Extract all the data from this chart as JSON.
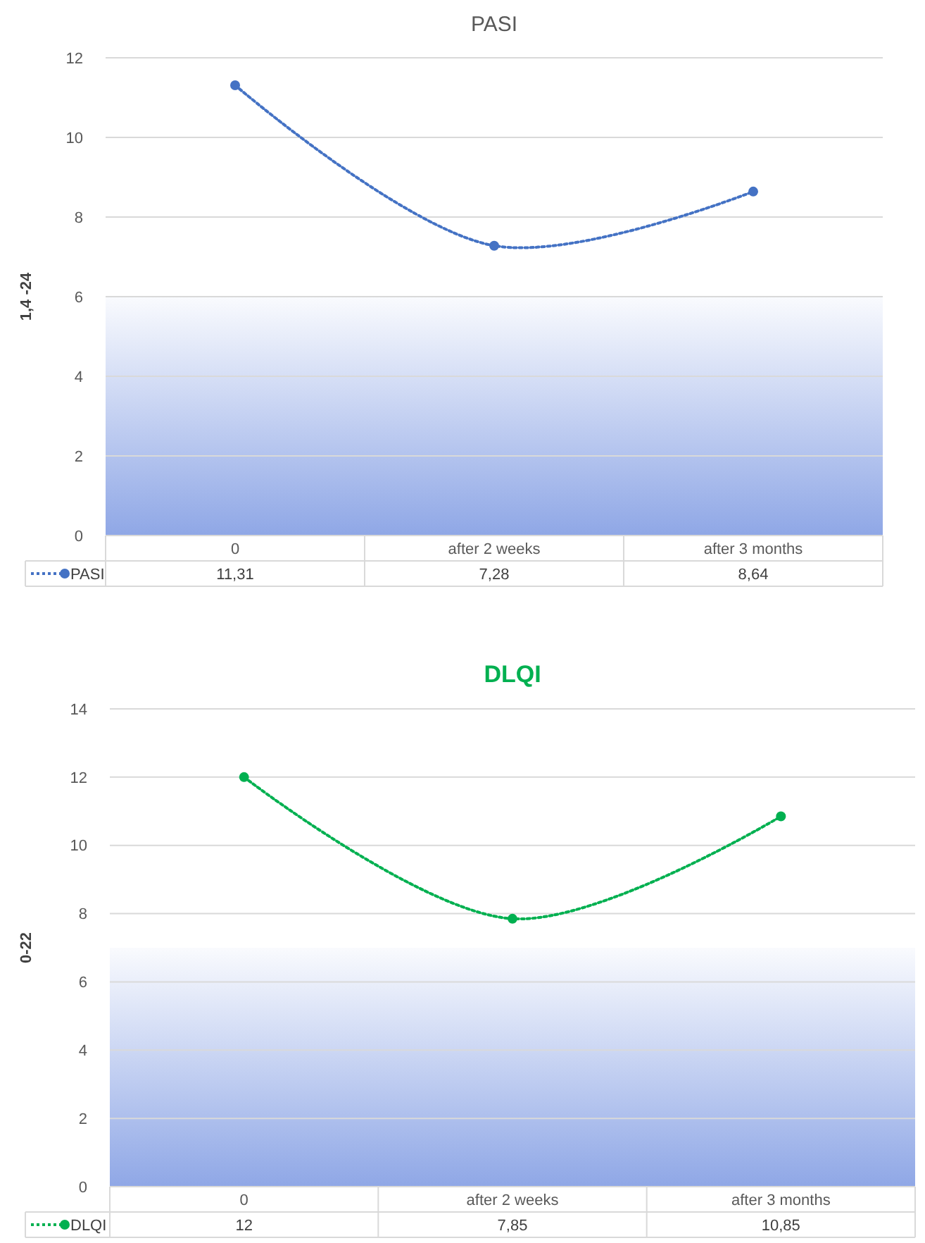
{
  "chart_data": [
    {
      "type": "line",
      "title": "PASI",
      "ylabel": "1,4 -24",
      "categories": [
        "0",
        "after 2 weeks",
        "after 3 months"
      ],
      "series": [
        {
          "name": "PASI",
          "color": "#4472c4",
          "values": [
            11.31,
            7.28,
            8.64
          ],
          "value_labels": [
            "11,31",
            "7,28",
            "8,64"
          ]
        }
      ],
      "ylim": [
        0,
        12
      ],
      "yticks": [
        0,
        2,
        4,
        6,
        8,
        10,
        12
      ],
      "grid": "y",
      "legend": "bottom",
      "marker": "circle",
      "line_style": "dotted",
      "bands": [
        {
          "axis": "y",
          "from": 0,
          "to": 6,
          "color": "#8fa7e6"
        }
      ]
    },
    {
      "type": "line",
      "title": "DLQI",
      "ylabel": "0-22",
      "categories": [
        "0",
        "after 2 weeks",
        "after 3 months"
      ],
      "series": [
        {
          "name": "DLQI",
          "color": "#00b050",
          "values": [
            12,
            7.85,
            10.85
          ],
          "value_labels": [
            "12",
            "7,85",
            "10,85"
          ]
        }
      ],
      "ylim": [
        0,
        14
      ],
      "yticks": [
        0,
        2,
        4,
        6,
        8,
        10,
        12,
        14
      ],
      "grid": "y",
      "legend": "bottom",
      "marker": "circle",
      "line_style": "dotted",
      "bands": [
        {
          "axis": "y",
          "from": 0,
          "to": 7,
          "color": "#8fa7e6"
        }
      ]
    }
  ]
}
